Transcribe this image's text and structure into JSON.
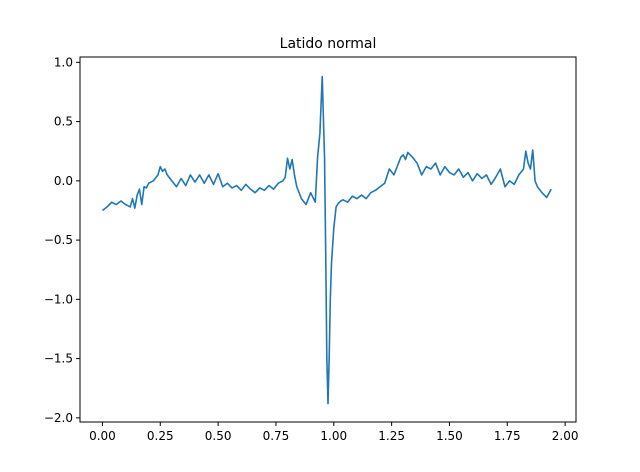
{
  "chart_data": {
    "type": "line",
    "title": "Latido normal",
    "xlabel": "",
    "ylabel": "",
    "xlim": [
      -0.097,
      2.047
    ],
    "ylim": [
      -2.035,
      1.045
    ],
    "xticks": [
      0.0,
      0.25,
      0.5,
      0.75,
      1.0,
      1.25,
      1.5,
      1.75,
      2.0
    ],
    "xtick_labels": [
      "0.00",
      "0.25",
      "0.50",
      "0.75",
      "1.00",
      "1.25",
      "1.50",
      "1.75",
      "2.00"
    ],
    "yticks": [
      1.0,
      0.5,
      0.0,
      -0.5,
      -1.0,
      -1.5,
      -2.0
    ],
    "ytick_labels": [
      "1.0",
      "0.5",
      "0.0",
      "−0.5",
      "−1.0",
      "−1.5",
      "−2.0"
    ],
    "grid": false,
    "line_color": "#1f77b4",
    "series": [
      {
        "x": [
          0.0,
          0.02,
          0.04,
          0.06,
          0.08,
          0.1,
          0.12,
          0.13,
          0.14,
          0.15,
          0.16,
          0.17,
          0.18,
          0.19,
          0.2,
          0.22,
          0.24,
          0.25,
          0.26,
          0.27,
          0.28,
          0.3,
          0.32,
          0.34,
          0.36,
          0.38,
          0.4,
          0.42,
          0.44,
          0.46,
          0.48,
          0.5,
          0.52,
          0.54,
          0.56,
          0.58,
          0.6,
          0.62,
          0.64,
          0.66,
          0.68,
          0.7,
          0.72,
          0.74,
          0.76,
          0.78,
          0.79,
          0.8,
          0.81,
          0.82,
          0.83,
          0.84,
          0.86,
          0.88,
          0.9,
          0.92,
          0.93,
          0.94,
          0.95,
          0.96,
          0.965,
          0.97,
          0.975,
          0.98,
          0.985,
          0.99,
          1.0,
          1.01,
          1.02,
          1.03,
          1.04,
          1.06,
          1.08,
          1.1,
          1.12,
          1.14,
          1.16,
          1.18,
          1.2,
          1.22,
          1.24,
          1.26,
          1.28,
          1.29,
          1.3,
          1.31,
          1.32,
          1.34,
          1.36,
          1.38,
          1.4,
          1.42,
          1.44,
          1.46,
          1.48,
          1.5,
          1.52,
          1.54,
          1.56,
          1.58,
          1.6,
          1.62,
          1.64,
          1.66,
          1.68,
          1.7,
          1.72,
          1.74,
          1.76,
          1.78,
          1.8,
          1.82,
          1.83,
          1.84,
          1.85,
          1.86,
          1.87,
          1.88,
          1.9,
          1.92,
          1.94
        ],
        "y": [
          -0.25,
          -0.22,
          -0.18,
          -0.2,
          -0.17,
          -0.2,
          -0.22,
          -0.15,
          -0.23,
          -0.12,
          -0.07,
          -0.2,
          -0.05,
          -0.06,
          -0.02,
          0.0,
          0.05,
          0.12,
          0.08,
          0.1,
          0.05,
          0.0,
          -0.05,
          0.02,
          -0.04,
          0.05,
          -0.01,
          0.05,
          -0.02,
          0.05,
          -0.03,
          0.06,
          -0.05,
          -0.02,
          -0.06,
          -0.04,
          -0.08,
          -0.03,
          -0.07,
          -0.1,
          -0.06,
          -0.08,
          -0.04,
          -0.07,
          -0.02,
          0.0,
          0.03,
          0.19,
          0.1,
          0.18,
          0.05,
          -0.05,
          -0.15,
          -0.2,
          -0.1,
          -0.18,
          0.2,
          0.4,
          0.88,
          0.2,
          -0.6,
          -1.5,
          -1.88,
          -1.5,
          -1.0,
          -0.7,
          -0.4,
          -0.22,
          -0.19,
          -0.17,
          -0.16,
          -0.18,
          -0.13,
          -0.15,
          -0.12,
          -0.15,
          -0.1,
          -0.08,
          -0.05,
          -0.02,
          0.1,
          0.05,
          0.15,
          0.2,
          0.22,
          0.18,
          0.24,
          0.2,
          0.15,
          0.05,
          0.12,
          0.1,
          0.15,
          0.05,
          0.12,
          0.07,
          0.05,
          0.1,
          0.03,
          0.07,
          0.0,
          0.06,
          0.02,
          0.05,
          -0.03,
          0.03,
          0.1,
          -0.05,
          0.0,
          -0.03,
          0.05,
          0.1,
          0.25,
          0.15,
          0.1,
          0.26,
          0.0,
          -0.05,
          -0.1,
          -0.14,
          -0.07
        ]
      }
    ]
  }
}
